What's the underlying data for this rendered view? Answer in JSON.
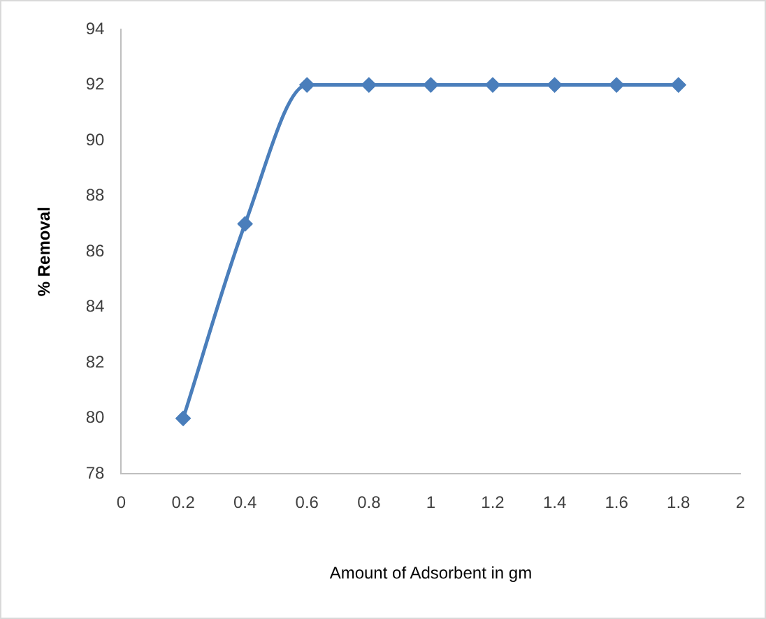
{
  "chart_data": {
    "type": "line",
    "xlabel": "Amount of Adsorbent in gm",
    "ylabel": "% Removal",
    "x": [
      0.2,
      0.4,
      0.6,
      0.8,
      1,
      1.2,
      1.4,
      1.6,
      1.8
    ],
    "series": [
      {
        "color": "#4a7ebb",
        "values": [
          80,
          87,
          92,
          92,
          92,
          92,
          92,
          92,
          92
        ]
      }
    ],
    "xlim": [
      0,
      2
    ],
    "xticks": [
      0,
      0.2,
      0.4,
      0.6,
      0.8,
      1,
      1.2,
      1.4,
      1.6,
      1.8,
      2
    ],
    "ylim": [
      78,
      94
    ],
    "yticks": [
      78,
      80,
      82,
      84,
      86,
      88,
      90,
      92,
      94
    ],
    "grid": false,
    "legend": false,
    "marker": "diamond",
    "line_style": "solid"
  }
}
